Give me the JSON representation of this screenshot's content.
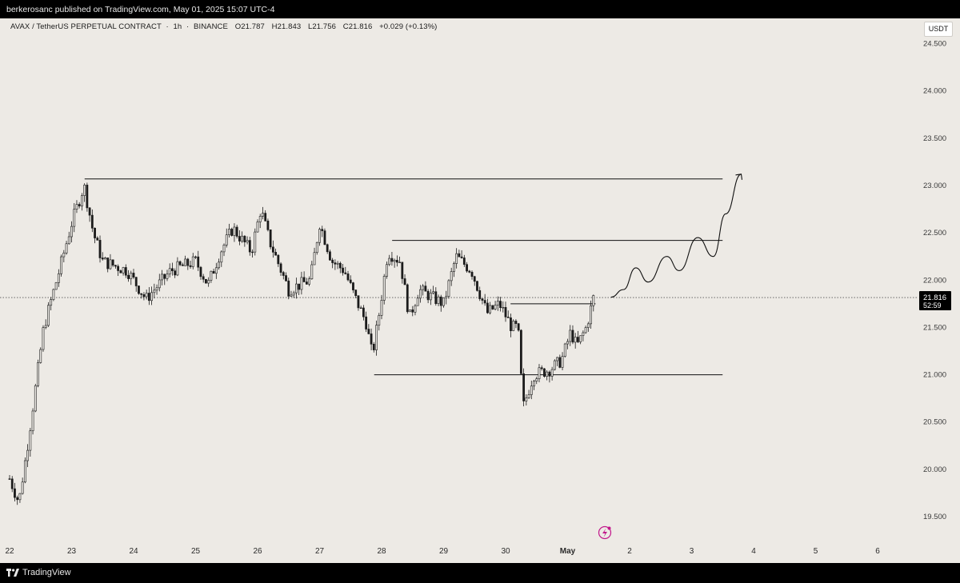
{
  "header": {
    "publish_text": "berkerosanc published on TradingView.com, May 01, 2025 15:07 UTC-4"
  },
  "legend": {
    "symbol": "AVAX / TetherUS PERPETUAL CONTRACT",
    "interval": "1h",
    "exchange": "BINANCE",
    "open": "O21.787",
    "high": "H21.843",
    "low": "L21.756",
    "close": "C21.816",
    "change": "+0.029 (+0.13%)"
  },
  "currency_label": "USDT",
  "price_badge": {
    "price": "21.816",
    "countdown": "52:59"
  },
  "footer": {
    "brand": "TradingView"
  },
  "colors": {
    "background": "#edeae5",
    "candle": "#1b1b1b",
    "badge_bg": "#000000",
    "event_icon": "#c2188b"
  },
  "chart_data": {
    "type": "candlestick",
    "yticks": [
      "24.500",
      "24.000",
      "23.500",
      "23.000",
      "22.500",
      "22.000",
      "21.500",
      "21.000",
      "20.500",
      "20.000",
      "19.500"
    ],
    "ylim": [
      19.4,
      24.6
    ],
    "x_labels": [
      "22",
      "23",
      "24",
      "25",
      "26",
      "27",
      "28",
      "29",
      "30",
      "May",
      "2",
      "3",
      "4",
      "5",
      "6"
    ],
    "x_ticks_days": [
      0,
      1,
      2,
      3,
      4,
      5,
      6,
      7,
      8,
      9,
      10,
      11,
      12,
      13,
      14
    ],
    "current_price": 21.816,
    "anchors": [
      [
        0.0,
        19.9
      ],
      [
        0.15,
        19.65
      ],
      [
        0.3,
        20.3
      ],
      [
        0.55,
        21.5
      ],
      [
        0.8,
        22.1
      ],
      [
        1.0,
        22.6
      ],
      [
        1.2,
        23.0
      ],
      [
        1.35,
        22.5
      ],
      [
        1.5,
        22.2
      ],
      [
        1.9,
        22.1
      ],
      [
        2.2,
        21.8
      ],
      [
        2.6,
        22.1
      ],
      [
        3.0,
        22.2
      ],
      [
        3.2,
        21.95
      ],
      [
        3.4,
        22.3
      ],
      [
        3.6,
        22.55
      ],
      [
        3.9,
        22.3
      ],
      [
        4.05,
        22.75
      ],
      [
        4.2,
        22.4
      ],
      [
        4.5,
        21.9
      ],
      [
        4.85,
        22.0
      ],
      [
        5.0,
        22.6
      ],
      [
        5.2,
        22.2
      ],
      [
        5.4,
        22.1
      ],
      [
        5.55,
        21.85
      ],
      [
        5.75,
        21.55
      ],
      [
        5.85,
        21.2
      ],
      [
        5.95,
        21.6
      ],
      [
        6.1,
        22.3
      ],
      [
        6.3,
        22.2
      ],
      [
        6.45,
        21.6
      ],
      [
        6.6,
        21.9
      ],
      [
        7.0,
        21.75
      ],
      [
        7.2,
        22.25
      ],
      [
        7.45,
        22.1
      ],
      [
        7.7,
        21.65
      ],
      [
        7.9,
        21.75
      ],
      [
        8.1,
        21.5
      ],
      [
        8.2,
        21.5
      ],
      [
        8.28,
        20.65
      ],
      [
        8.45,
        21.0
      ],
      [
        8.7,
        21.05
      ],
      [
        8.9,
        21.15
      ],
      [
        9.05,
        21.45
      ],
      [
        9.15,
        21.3
      ],
      [
        9.3,
        21.5
      ],
      [
        9.42,
        21.82
      ]
    ],
    "levels": [
      {
        "price": 23.07,
        "from": 1.21,
        "to": 11.5
      },
      {
        "price": 22.42,
        "from": 6.17,
        "to": 11.5
      },
      {
        "price": 21.0,
        "from": 5.88,
        "to": 11.5
      },
      {
        "price": 21.75,
        "from": 8.08,
        "to": 9.45
      }
    ],
    "projection": [
      [
        9.7,
        21.82
      ],
      [
        9.9,
        21.9
      ],
      [
        10.1,
        22.13
      ],
      [
        10.3,
        21.98
      ],
      [
        10.6,
        22.25
      ],
      [
        10.8,
        22.1
      ],
      [
        11.1,
        22.45
      ],
      [
        11.35,
        22.25
      ],
      [
        11.55,
        22.7
      ],
      [
        11.8,
        23.12
      ]
    ]
  }
}
